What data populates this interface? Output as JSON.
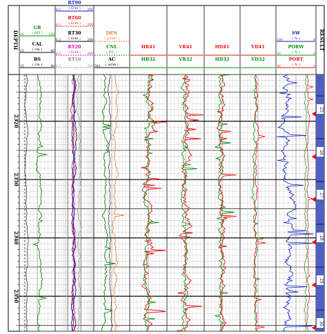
{
  "colors": {
    "green": "#0a8a0a",
    "red": "#e01010",
    "blue": "#1020c0",
    "orange": "#f07820",
    "magenta": "#e000c0",
    "gray": "#909090",
    "black": "#000000",
    "lith_blue": "#5060c0"
  },
  "header": {
    "depth_label": "DEPTH",
    "result_label": "RESULT",
    "tracks": [
      {
        "id": "gr_cal_bs",
        "entries": [
          {
            "name": "GR",
            "unit": "( API )",
            "min": "30",
            "max": "150",
            "color": "green"
          },
          {
            "name": "CAL",
            "unit": "( cm )",
            "min": "15",
            "max": "40",
            "color": "black"
          },
          {
            "name": "BS",
            "unit": "( cm )",
            "min": "15",
            "max": "40",
            "color": "black"
          }
        ]
      },
      {
        "id": "resistivity",
        "entries": [
          {
            "name": "RT90",
            "unit": "( Ω·m )",
            "min": "0.2",
            "max": "200",
            "color": "blue"
          },
          {
            "name": "RT60",
            "unit": "( Ω·m )",
            "min": "0.2",
            "max": "200",
            "color": "red"
          },
          {
            "name": "RT30",
            "unit": "( Ω·m )",
            "min": "0.2",
            "max": "200",
            "color": "black"
          },
          {
            "name": "RT20",
            "unit": "( Ω·m )",
            "min": "0.2",
            "max": "200",
            "color": "magenta"
          },
          {
            "name": "RT10",
            "unit": "",
            "min": "0.2",
            "max": "200",
            "color": "gray"
          }
        ]
      },
      {
        "id": "porosity",
        "entries": [
          {
            "name": "DEN",
            "unit": "( g/cm³ )",
            "min": "",
            "max": "",
            "color": "orange"
          },
          {
            "name": "CNL",
            "unit": "( P.U. )",
            "min": "",
            "max": "",
            "color": "green"
          },
          {
            "name": "AC",
            "unit": "( us/m )",
            "min": "581",
            "max": "",
            "color": "black"
          }
        ]
      },
      {
        "id": "hr",
        "entries": [
          {
            "name": "HR41",
            "unit": "",
            "min": "",
            "max": "",
            "color": "red"
          },
          {
            "name": "HR32",
            "unit": "",
            "min": "",
            "max": "",
            "color": "green"
          }
        ]
      },
      {
        "id": "vr",
        "entries": [
          {
            "name": "VR41",
            "unit": "",
            "min": "",
            "max": "",
            "color": "red"
          },
          {
            "name": "VR32",
            "unit": "",
            "min": "",
            "max": "",
            "color": "green"
          }
        ]
      },
      {
        "id": "hd",
        "entries": [
          {
            "name": "HD41",
            "unit": "",
            "min": "",
            "max": "",
            "color": "red"
          },
          {
            "name": "HD32",
            "unit": "",
            "min": "",
            "max": "",
            "color": "green"
          }
        ]
      },
      {
        "id": "vd",
        "entries": [
          {
            "name": "VD41",
            "unit": "",
            "min": "",
            "max": "",
            "color": "red"
          },
          {
            "name": "VD32",
            "unit": "",
            "min": "",
            "max": "",
            "color": "green"
          }
        ]
      },
      {
        "id": "sw_porw_port",
        "entries": [
          {
            "name": "SW",
            "unit": "( % )",
            "min": "100",
            "max": "0",
            "color": "blue"
          },
          {
            "name": "PORW",
            "unit": "( % )",
            "min": "30",
            "max": "0",
            "color": "green"
          },
          {
            "name": "PORT",
            "unit": "( % )",
            "min": "30",
            "max": "0",
            "color": "red"
          }
        ]
      }
    ]
  },
  "chart_data": {
    "type": "line",
    "title": "",
    "depth_tick_labels": [
      "2320",
      "2330",
      "2340",
      "2350"
    ],
    "depth_range": [
      2312,
      2356
    ],
    "result_layer_numbers": [
      "25",
      "26",
      "27",
      "28",
      "29",
      "30"
    ],
    "curves": [
      "GR",
      "CAL",
      "BS",
      "RT90",
      "RT60",
      "RT30",
      "RT20",
      "RT10",
      "DEN",
      "CNL",
      "AC",
      "HR41",
      "HR32",
      "VR41",
      "VR32",
      "HD41",
      "HD32",
      "VD41",
      "VD32",
      "SW",
      "PORW",
      "PORT"
    ],
    "grid": true
  }
}
